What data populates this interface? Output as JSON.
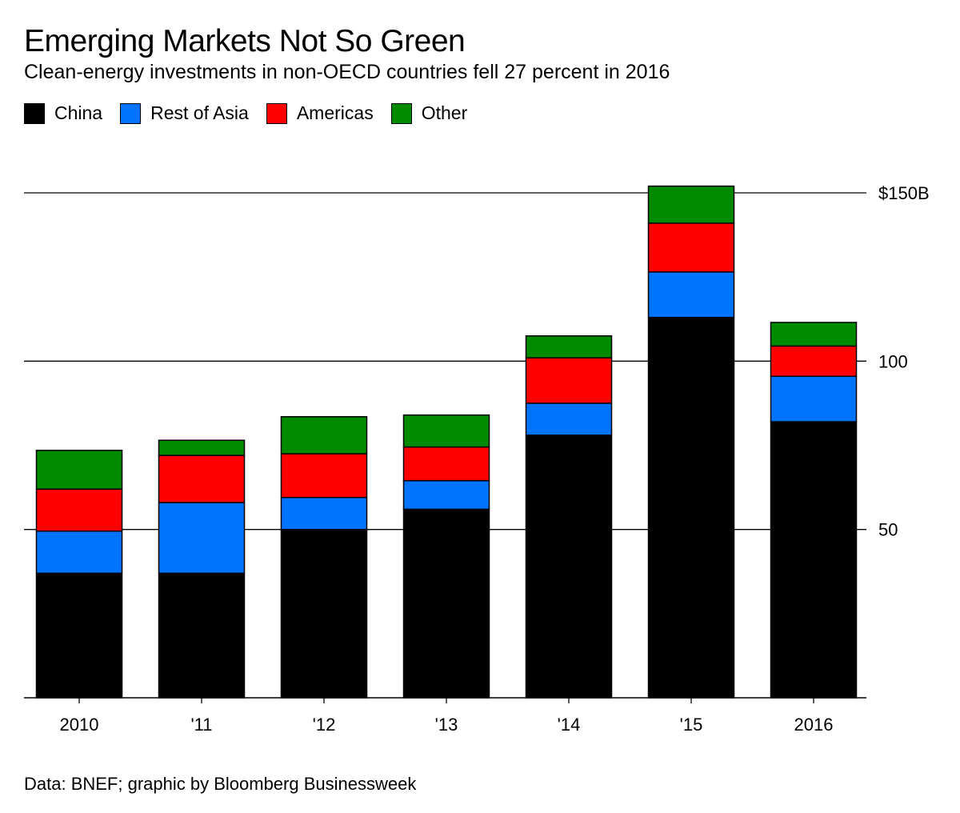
{
  "title": "Emerging Markets Not So Green",
  "subtitle": "Clean-energy investments in non-OECD countries fell 27 percent in 2016",
  "source": "Data: BNEF; graphic by Bloomberg Businessweek",
  "colors": {
    "China": "#000000",
    "Rest of Asia": "#0074ff",
    "Americas": "#ff0000",
    "Other": "#008a00"
  },
  "chart_data": {
    "type": "bar",
    "stacked": true,
    "title": "Emerging Markets Not So Green",
    "subtitle": "Clean-energy investments in non-OECD countries fell 27 percent in 2016",
    "categories": [
      "2010",
      "'11",
      "'12",
      "'13",
      "'14",
      "'15",
      "2016"
    ],
    "series": [
      {
        "name": "China",
        "values": [
          37,
          37,
          50,
          56,
          78,
          113,
          82
        ]
      },
      {
        "name": "Rest of Asia",
        "values": [
          12.5,
          21,
          9.5,
          8.5,
          9.5,
          13.5,
          13.5
        ]
      },
      {
        "name": "Americas",
        "values": [
          12.5,
          14,
          13,
          10,
          13.5,
          14.5,
          9
        ]
      },
      {
        "name": "Other",
        "values": [
          11.5,
          4.5,
          11,
          9.5,
          6.5,
          11,
          7
        ]
      }
    ],
    "ylim": [
      0,
      150
    ],
    "yticks": [
      {
        "value": 50,
        "label": "50"
      },
      {
        "value": 100,
        "label": "100"
      },
      {
        "value": 150,
        "label": "$150B"
      }
    ],
    "grid": true,
    "legend_position": "top-left",
    "xlabel": "",
    "ylabel": ""
  }
}
